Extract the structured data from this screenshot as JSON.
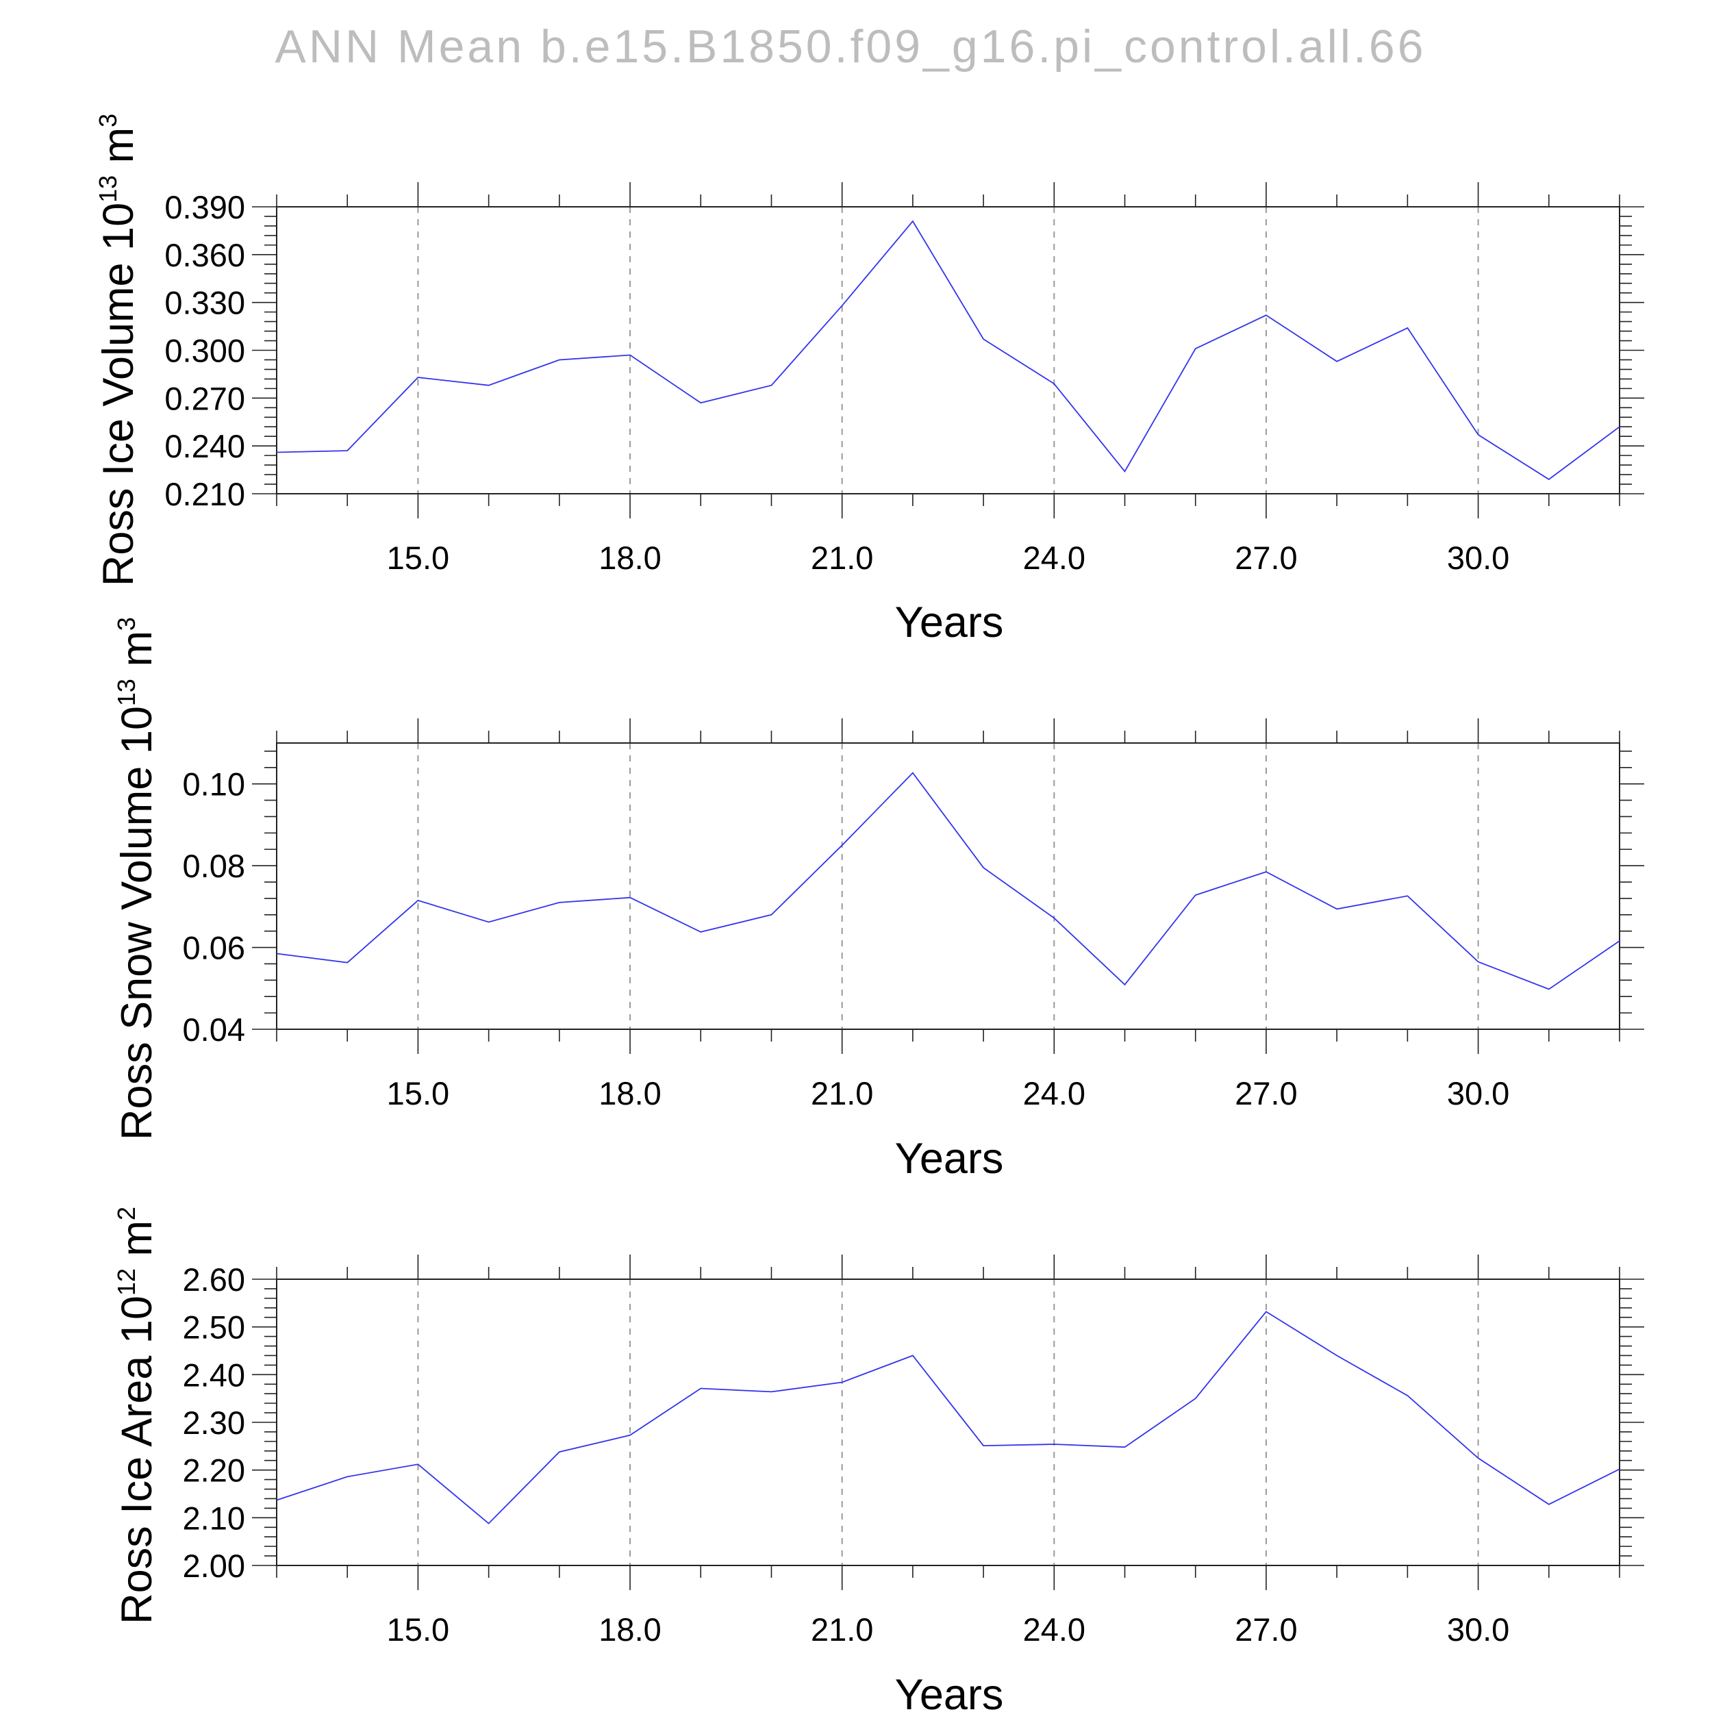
{
  "title": "ANN  Mean  b.e15.B1850.f09_g16.pi_control.all.66",
  "chart_data": [
    {
      "type": "line",
      "xlabel": "Years",
      "ylabel_main": "Ross Ice Volume 10",
      "ylabel_exp": "13",
      "ylabel_unit": " m",
      "ylabel_unit_exp": "3",
      "xlim": [
        13,
        32
      ],
      "ylim": [
        0.21,
        0.39
      ],
      "xticks": [
        15,
        18,
        21,
        24,
        27,
        30
      ],
      "xtick_labels": [
        "15.0",
        "18.0",
        "21.0",
        "24.0",
        "27.0",
        "30.0"
      ],
      "yticks": [
        0.21,
        0.24,
        0.27,
        0.3,
        0.33,
        0.36,
        0.39
      ],
      "ytick_labels": [
        "0.210",
        "0.240",
        "0.270",
        "0.300",
        "0.330",
        "0.360",
        "0.390"
      ],
      "grid": "vertical dashed at major x ticks",
      "color": "#3333ee",
      "x": [
        13,
        14,
        15,
        16,
        17,
        18,
        19,
        20,
        21,
        22,
        23,
        24,
        25,
        26,
        27,
        28,
        29,
        30,
        31,
        32
      ],
      "values": [
        0.236,
        0.237,
        0.283,
        0.278,
        0.294,
        0.297,
        0.267,
        0.278,
        0.328,
        0.381,
        0.307,
        0.279,
        0.224,
        0.301,
        0.322,
        0.293,
        0.314,
        0.247,
        0.219,
        0.252
      ]
    },
    {
      "type": "line",
      "xlabel": "Years",
      "ylabel_main": "Ross Snow Volume 10",
      "ylabel_exp": "13",
      "ylabel_unit": " m",
      "ylabel_unit_exp": "3",
      "xlim": [
        13,
        32
      ],
      "ylim": [
        0.04,
        0.11
      ],
      "xticks": [
        15,
        18,
        21,
        24,
        27,
        30
      ],
      "xtick_labels": [
        "15.0",
        "18.0",
        "21.0",
        "24.0",
        "27.0",
        "30.0"
      ],
      "yticks": [
        0.04,
        0.06,
        0.08,
        0.1
      ],
      "ytick_labels": [
        "0.04",
        "0.06",
        "0.08",
        "0.10"
      ],
      "grid": "vertical dashed at major x ticks",
      "color": "#3333ee",
      "x": [
        13,
        14,
        15,
        16,
        17,
        18,
        19,
        20,
        21,
        22,
        23,
        24,
        25,
        26,
        27,
        28,
        29,
        30,
        31,
        32
      ],
      "values": [
        0.0585,
        0.0563,
        0.0715,
        0.0662,
        0.071,
        0.0722,
        0.0638,
        0.068,
        0.085,
        0.1027,
        0.0795,
        0.0672,
        0.0509,
        0.0728,
        0.0785,
        0.0694,
        0.0726,
        0.0565,
        0.0498,
        0.0616
      ]
    },
    {
      "type": "line",
      "xlabel": "Years",
      "ylabel_main": "Ross Ice Area 10",
      "ylabel_exp": "12",
      "ylabel_unit": " m",
      "ylabel_unit_exp": "2",
      "xlim": [
        13,
        32
      ],
      "ylim": [
        2.0,
        2.6
      ],
      "xticks": [
        15,
        18,
        21,
        24,
        27,
        30
      ],
      "xtick_labels": [
        "15.0",
        "18.0",
        "21.0",
        "24.0",
        "27.0",
        "30.0"
      ],
      "yticks": [
        2.0,
        2.1,
        2.2,
        2.3,
        2.4,
        2.5,
        2.6
      ],
      "ytick_labels": [
        "2.00",
        "2.10",
        "2.20",
        "2.30",
        "2.40",
        "2.50",
        "2.60"
      ],
      "grid": "vertical dashed at major x ticks",
      "color": "#3333ee",
      "x": [
        13,
        14,
        15,
        16,
        17,
        18,
        19,
        20,
        21,
        22,
        23,
        24,
        25,
        26,
        27,
        28,
        29,
        30,
        31,
        32
      ],
      "values": [
        2.137,
        2.186,
        2.212,
        2.088,
        2.238,
        2.273,
        2.371,
        2.364,
        2.384,
        2.44,
        2.251,
        2.254,
        2.248,
        2.35,
        2.532,
        2.44,
        2.356,
        2.225,
        2.128,
        2.202
      ]
    }
  ]
}
